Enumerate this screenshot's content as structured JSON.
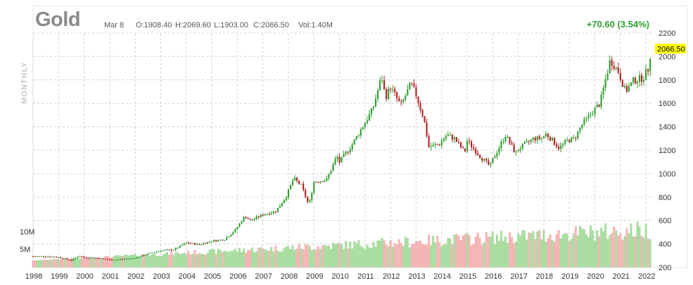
{
  "header": {
    "title": "Gold",
    "date": "Mar 8",
    "open": "O:1908.40",
    "high": "H:2069.60",
    "low": "L:1903.00",
    "close": "C:2066.50",
    "volume": "Vol:1.40M",
    "change": "+70.60 (3.54%)",
    "interval": "MONTHLY"
  },
  "colors": {
    "up": "#2e9e2e",
    "down": "#b02020",
    "volume_up": "#a8dca0",
    "volume_down": "#f5b4b4",
    "last_price_bg": "#ffff00",
    "grid": "#d0d0d0"
  },
  "chart_data": {
    "type": "candlestick",
    "interval": "monthly",
    "last_price_label": "2066.50",
    "price_axis": {
      "min": 200,
      "max": 2200,
      "ticks": [
        200,
        400,
        600,
        800,
        1000,
        1200,
        1400,
        1600,
        1800,
        2000,
        2200
      ]
    },
    "volume_axis": {
      "ticks": [
        "5M",
        "10M"
      ],
      "tick_values": [
        5,
        10
      ],
      "unit": "million contracts"
    },
    "x_axis": {
      "labels": [
        "1998",
        "1999",
        "2000",
        "2001",
        "2002",
        "2003",
        "2004",
        "2005",
        "2006",
        "2007",
        "2008",
        "2009",
        "2010",
        "2011",
        "2012",
        "2013",
        "2014",
        "2015",
        "2016",
        "2017",
        "2018",
        "2019",
        "2020",
        "2021",
        "2022"
      ]
    },
    "grid": true,
    "close_path": [
      [
        "1998.0",
        295
      ],
      [
        "1998.5",
        295
      ],
      [
        "1999.0",
        288
      ],
      [
        "1999.5",
        260
      ],
      [
        "1999.8",
        300
      ],
      [
        "2000.0",
        285
      ],
      [
        "2000.5",
        280
      ],
      [
        "2001.0",
        265
      ],
      [
        "2001.5",
        270
      ],
      [
        "2001.9",
        278
      ],
      [
        "2002.5",
        315
      ],
      [
        "2003.0",
        345
      ],
      [
        "2003.5",
        350
      ],
      [
        "2004.0",
        410
      ],
      [
        "2004.5",
        395
      ],
      [
        "2005.0",
        425
      ],
      [
        "2005.5",
        440
      ],
      [
        "2005.9",
        515
      ],
      [
        "2006.3",
        640
      ],
      [
        "2006.5",
        600
      ],
      [
        "2007.0",
        650
      ],
      [
        "2007.5",
        680
      ],
      [
        "2007.9",
        800
      ],
      [
        "2008.2",
        960
      ],
      [
        "2008.5",
        900
      ],
      [
        "2008.8",
        730
      ],
      [
        "2009.0",
        930
      ],
      [
        "2009.5",
        950
      ],
      [
        "2009.9",
        1150
      ],
      [
        "2010.0",
        1100
      ],
      [
        "2010.5",
        1250
      ],
      [
        "2010.9",
        1400
      ],
      [
        "2011.3",
        1550
      ],
      [
        "2011.65",
        1830
      ],
      [
        "2011.8",
        1650
      ],
      [
        "2012.0",
        1740
      ],
      [
        "2012.4",
        1580
      ],
      [
        "2012.8",
        1770
      ],
      [
        "2013.0",
        1670
      ],
      [
        "2013.3",
        1470
      ],
      [
        "2013.5",
        1230
      ],
      [
        "2013.9",
        1250
      ],
      [
        "2014.2",
        1330
      ],
      [
        "2014.5",
        1300
      ],
      [
        "2014.9",
        1180
      ],
      [
        "2015.0",
        1280
      ],
      [
        "2015.5",
        1150
      ],
      [
        "2015.9",
        1060
      ],
      [
        "2016.0",
        1120
      ],
      [
        "2016.5",
        1330
      ],
      [
        "2016.9",
        1170
      ],
      [
        "2017.0",
        1210
      ],
      [
        "2017.6",
        1300
      ],
      [
        "2017.9",
        1300
      ],
      [
        "2018.1",
        1340
      ],
      [
        "2018.6",
        1220
      ],
      [
        "2018.9",
        1280
      ],
      [
        "2019.2",
        1300
      ],
      [
        "2019.5",
        1420
      ],
      [
        "2019.8",
        1500
      ],
      [
        "2020.2",
        1600
      ],
      [
        "2020.6",
        1970
      ],
      [
        "2020.9",
        1880
      ],
      [
        "2021.2",
        1700
      ],
      [
        "2021.5",
        1790
      ],
      [
        "2021.9",
        1820
      ],
      [
        "2022.1",
        1900
      ],
      [
        "2022.2",
        2066
      ]
    ]
  }
}
